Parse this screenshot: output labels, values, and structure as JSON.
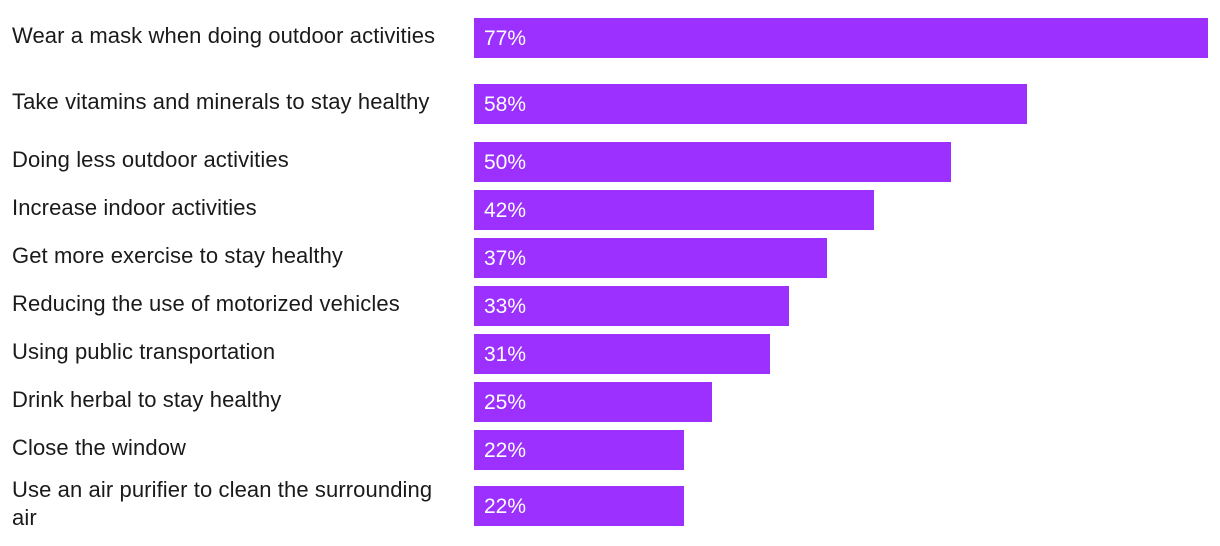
{
  "chart_data": {
    "type": "bar",
    "orientation": "horizontal",
    "categories": [
      "Wear a mask when doing outdoor activities",
      "Take vitamins and minerals to stay healthy",
      "Doing less outdoor activities",
      "Increase indoor activities",
      "Get more exercise to stay healthy",
      "Reducing the use of motorized vehicles",
      "Using public transportation",
      "Drink herbal to stay healthy",
      "Close the window",
      "Use an air purifier to clean the surrounding air"
    ],
    "values": [
      77,
      58,
      50,
      42,
      37,
      33,
      31,
      25,
      22,
      22
    ],
    "value_labels": [
      "77%",
      "58%",
      "50%",
      "42%",
      "37%",
      "33%",
      "31%",
      "25%",
      "22%",
      "22%"
    ],
    "title": "",
    "xlabel": "",
    "ylabel": "",
    "xlim": [
      0,
      77
    ],
    "grid": false,
    "legend": "none",
    "bar_color": "#9b30ff",
    "value_label_color": "#ffffff"
  }
}
